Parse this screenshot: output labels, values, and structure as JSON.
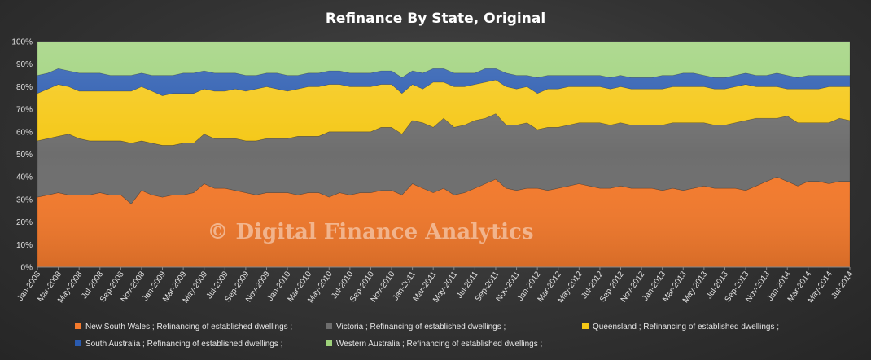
{
  "chart_data": {
    "type": "area",
    "stacked": true,
    "title": "Refinance  By State, Original",
    "watermark": "© Digital Finance Analytics",
    "ylim": [
      0,
      100
    ],
    "y_ticks": [
      "0%",
      "10%",
      "20%",
      "30%",
      "40%",
      "50%",
      "60%",
      "70%",
      "80%",
      "90%",
      "100%"
    ],
    "x_tick_labels": [
      "Jan-2008",
      "Mar-2008",
      "May-2008",
      "Jul-2008",
      "Sep-2008",
      "Nov-2008",
      "Jan-2009",
      "Mar-2009",
      "May-2009",
      "Jul-2009",
      "Sep-2009",
      "Nov-2009",
      "Jan-2010",
      "Mar-2010",
      "May-2010",
      "Jul-2010",
      "Sep-2010",
      "Nov-2010",
      "Jan-2011",
      "Mar-2011",
      "May-2011",
      "Jul-2011",
      "Sep-2011",
      "Nov-2011",
      "Jan-2012",
      "Mar-2012",
      "May-2012",
      "Jul-2012",
      "Sep-2012",
      "Nov-2012",
      "Jan-2013",
      "Mar-2013",
      "May-2013",
      "Jul-2013",
      "Sep-2013",
      "Nov-2013",
      "Jan-2014",
      "Mar-2014",
      "May-2014",
      "Jul-2014"
    ],
    "x": [
      "Jan-2008",
      "Feb-2008",
      "Mar-2008",
      "Apr-2008",
      "May-2008",
      "Jun-2008",
      "Jul-2008",
      "Aug-2008",
      "Sep-2008",
      "Oct-2008",
      "Nov-2008",
      "Dec-2008",
      "Jan-2009",
      "Feb-2009",
      "Mar-2009",
      "Apr-2009",
      "May-2009",
      "Jun-2009",
      "Jul-2009",
      "Aug-2009",
      "Sep-2009",
      "Oct-2009",
      "Nov-2009",
      "Dec-2009",
      "Jan-2010",
      "Feb-2010",
      "Mar-2010",
      "Apr-2010",
      "May-2010",
      "Jun-2010",
      "Jul-2010",
      "Aug-2010",
      "Sep-2010",
      "Oct-2010",
      "Nov-2010",
      "Dec-2010",
      "Jan-2011",
      "Feb-2011",
      "Mar-2011",
      "Apr-2011",
      "May-2011",
      "Jun-2011",
      "Jul-2011",
      "Aug-2011",
      "Sep-2011",
      "Oct-2011",
      "Nov-2011",
      "Dec-2011",
      "Jan-2012",
      "Feb-2012",
      "Mar-2012",
      "Apr-2012",
      "May-2012",
      "Jun-2012",
      "Jul-2012",
      "Aug-2012",
      "Sep-2012",
      "Oct-2012",
      "Nov-2012",
      "Dec-2012",
      "Jan-2013",
      "Feb-2013",
      "Mar-2013",
      "Apr-2013",
      "May-2013",
      "Jun-2013",
      "Jul-2013",
      "Aug-2013",
      "Sep-2013",
      "Oct-2013",
      "Nov-2013",
      "Dec-2013",
      "Jan-2014",
      "Feb-2014",
      "Mar-2014",
      "Apr-2014",
      "May-2014",
      "Jun-2014",
      "Jul-2014"
    ],
    "series": [
      {
        "name": "New South Wales ; Refinancing of established dwellings ;",
        "color": "#f47a2c",
        "values": [
          31,
          32,
          33,
          32,
          32,
          32,
          33,
          32,
          32,
          28,
          34,
          32,
          31,
          32,
          32,
          33,
          37,
          35,
          35,
          34,
          33,
          32,
          33,
          33,
          33,
          32,
          33,
          33,
          31,
          33,
          32,
          33,
          33,
          34,
          34,
          32,
          37,
          35,
          33,
          35,
          32,
          33,
          35,
          37,
          39,
          35,
          34,
          35,
          35,
          34,
          35,
          36,
          37,
          36,
          35,
          35,
          36,
          35,
          35,
          35,
          34,
          35,
          34,
          35,
          36,
          35,
          35,
          35,
          34,
          36,
          38,
          40,
          38,
          36,
          38,
          38,
          37,
          38,
          38
        ]
      },
      {
        "name": "Victoria ; Refinancing of established dwellings ;",
        "color": "#6e6e6e",
        "values": [
          25,
          25,
          25,
          27,
          25,
          24,
          23,
          24,
          24,
          27,
          22,
          23,
          23,
          22,
          23,
          22,
          22,
          22,
          22,
          23,
          23,
          24,
          24,
          24,
          24,
          26,
          25,
          25,
          29,
          27,
          28,
          27,
          27,
          28,
          28,
          27,
          28,
          29,
          29,
          31,
          30,
          30,
          30,
          29,
          29,
          28,
          29,
          29,
          26,
          28,
          27,
          27,
          27,
          28,
          29,
          28,
          28,
          28,
          28,
          28,
          29,
          29,
          30,
          29,
          28,
          28,
          28,
          29,
          31,
          30,
          28,
          26,
          29,
          28,
          26,
          26,
          27,
          28,
          27
        ]
      },
      {
        "name": "Queensland ; Refinancing of established dwellings ;",
        "color": "#f5c816",
        "values": [
          21,
          22,
          23,
          21,
          21,
          22,
          22,
          22,
          22,
          23,
          24,
          23,
          22,
          23,
          22,
          22,
          20,
          21,
          21,
          22,
          22,
          23,
          23,
          22,
          21,
          21,
          22,
          22,
          21,
          21,
          20,
          20,
          20,
          19,
          19,
          18,
          16,
          15,
          20,
          16,
          18,
          17,
          16,
          16,
          15,
          17,
          16,
          16,
          16,
          17,
          17,
          17,
          16,
          16,
          16,
          16,
          16,
          16,
          16,
          16,
          16,
          16,
          16,
          16,
          16,
          16,
          16,
          16,
          16,
          14,
          14,
          14,
          12,
          15,
          15,
          15,
          16,
          14,
          15
        ]
      },
      {
        "name": "South Australia ; Refinancing of established dwellings ;",
        "color": "#2a5bb0",
        "values": [
          8,
          7,
          7,
          7,
          8,
          8,
          8,
          7,
          7,
          7,
          6,
          7,
          9,
          8,
          9,
          9,
          8,
          8,
          8,
          7,
          7,
          6,
          6,
          7,
          7,
          6,
          6,
          6,
          6,
          6,
          6,
          6,
          6,
          6,
          6,
          7,
          6,
          7,
          6,
          6,
          6,
          6,
          5,
          6,
          5,
          6,
          6,
          5,
          7,
          6,
          6,
          5,
          5,
          5,
          5,
          5,
          5,
          5,
          5,
          5,
          6,
          5,
          6,
          6,
          5,
          5,
          5,
          5,
          5,
          5,
          5,
          6,
          6,
          5,
          6,
          6,
          5,
          5,
          5
        ]
      },
      {
        "name": "Western Australia ; Refinancing of established dwellings ;",
        "color": "#9ed27a",
        "values": [
          15,
          14,
          12,
          13,
          14,
          14,
          14,
          15,
          15,
          15,
          14,
          15,
          15,
          15,
          14,
          14,
          13,
          14,
          14,
          14,
          15,
          15,
          14,
          14,
          15,
          15,
          14,
          14,
          13,
          13,
          14,
          14,
          14,
          13,
          13,
          16,
          13,
          14,
          12,
          12,
          14,
          14,
          14,
          12,
          12,
          14,
          15,
          15,
          16,
          15,
          15,
          15,
          15,
          15,
          15,
          16,
          15,
          16,
          16,
          16,
          15,
          15,
          14,
          14,
          15,
          16,
          16,
          15,
          14,
          15,
          15,
          14,
          15,
          16,
          15,
          15,
          15,
          15,
          15
        ]
      }
    ],
    "legend_position": "bottom"
  }
}
